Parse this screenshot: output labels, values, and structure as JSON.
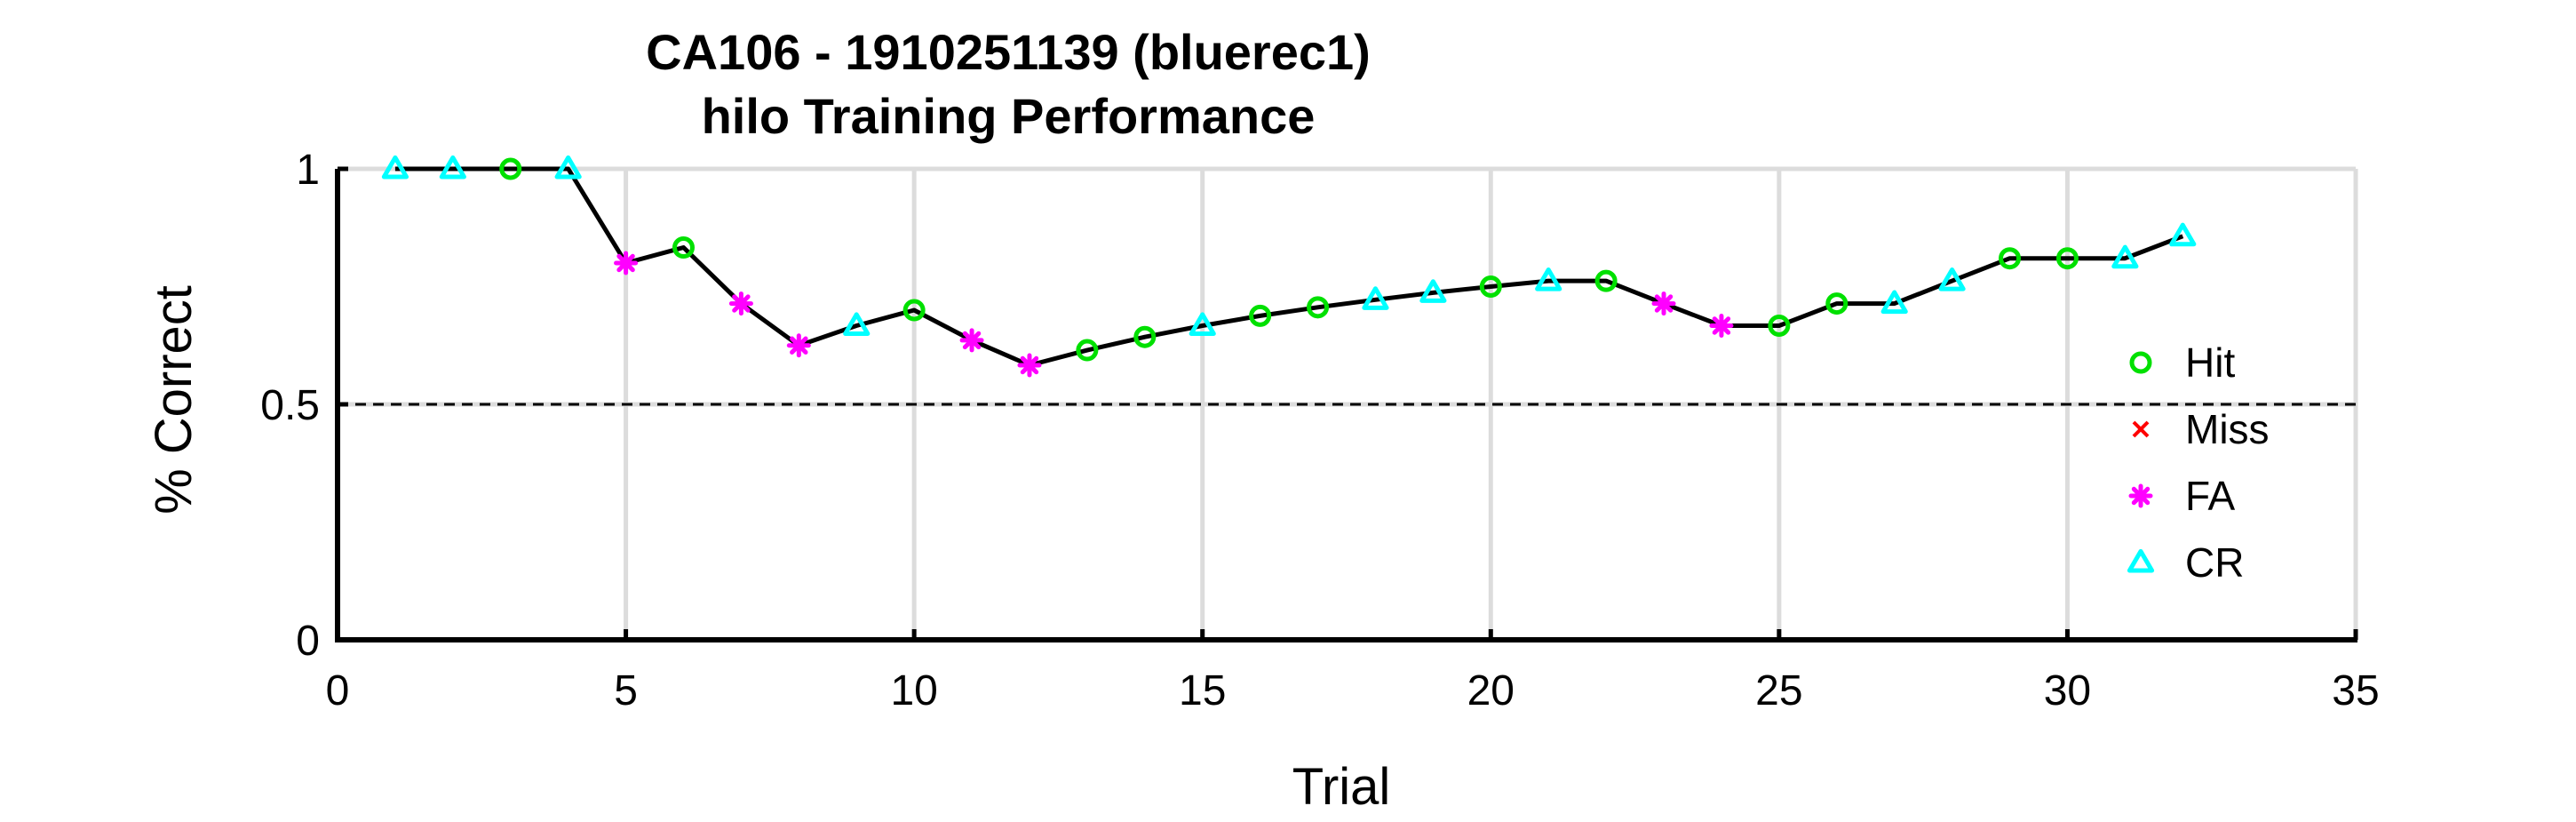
{
  "chart_data": {
    "type": "line",
    "title": "CA106 - 1910251139 (bluerec1)",
    "subtitle": "hilo Training Performance",
    "xlabel": "Trial",
    "ylabel": "% Correct",
    "xlim": [
      0,
      35
    ],
    "ylim": [
      0,
      1
    ],
    "xticks": [
      0,
      5,
      10,
      15,
      20,
      25,
      30,
      35
    ],
    "yticks": [
      0,
      0.5,
      1
    ],
    "xtick_labels": [
      "0",
      "5",
      "10",
      "15",
      "20",
      "25",
      "30",
      "35"
    ],
    "ytick_labels": [
      "0",
      "0.5",
      "1"
    ],
    "grid": true,
    "reference_line": 0.5,
    "legend_position": "right",
    "legend": [
      {
        "label": "Hit",
        "marker": "circle",
        "color": "#00e000"
      },
      {
        "label": "Miss",
        "marker": "x",
        "color": "#ff0000"
      },
      {
        "label": "FA",
        "marker": "asterisk",
        "color": "#ff00ff"
      },
      {
        "label": "CR",
        "marker": "triangle",
        "color": "#00ffff"
      }
    ],
    "line_color": "#000000",
    "points": [
      {
        "trial": 1,
        "value": 1.0,
        "outcome": "CR"
      },
      {
        "trial": 2,
        "value": 1.0,
        "outcome": "CR"
      },
      {
        "trial": 3,
        "value": 1.0,
        "outcome": "Hit"
      },
      {
        "trial": 4,
        "value": 1.0,
        "outcome": "CR"
      },
      {
        "trial": 5,
        "value": 0.8,
        "outcome": "FA"
      },
      {
        "trial": 6,
        "value": 0.833,
        "outcome": "Hit"
      },
      {
        "trial": 7,
        "value": 0.714,
        "outcome": "FA"
      },
      {
        "trial": 8,
        "value": 0.625,
        "outcome": "FA"
      },
      {
        "trial": 9,
        "value": 0.667,
        "outcome": "CR"
      },
      {
        "trial": 10,
        "value": 0.7,
        "outcome": "Hit"
      },
      {
        "trial": 11,
        "value": 0.636,
        "outcome": "FA"
      },
      {
        "trial": 12,
        "value": 0.583,
        "outcome": "FA"
      },
      {
        "trial": 13,
        "value": 0.615,
        "outcome": "Hit"
      },
      {
        "trial": 14,
        "value": 0.643,
        "outcome": "Hit"
      },
      {
        "trial": 15,
        "value": 0.667,
        "outcome": "CR"
      },
      {
        "trial": 16,
        "value": 0.688,
        "outcome": "Hit"
      },
      {
        "trial": 17,
        "value": 0.706,
        "outcome": "Hit"
      },
      {
        "trial": 18,
        "value": 0.722,
        "outcome": "CR"
      },
      {
        "trial": 19,
        "value": 0.737,
        "outcome": "CR"
      },
      {
        "trial": 20,
        "value": 0.75,
        "outcome": "Hit"
      },
      {
        "trial": 21,
        "value": 0.762,
        "outcome": "CR"
      },
      {
        "trial": 22,
        "value": 0.762,
        "outcome": "Hit"
      },
      {
        "trial": 23,
        "value": 0.714,
        "outcome": "FA"
      },
      {
        "trial": 24,
        "value": 0.667,
        "outcome": "FA"
      },
      {
        "trial": 25,
        "value": 0.667,
        "outcome": "Hit"
      },
      {
        "trial": 26,
        "value": 0.714,
        "outcome": "Hit"
      },
      {
        "trial": 27,
        "value": 0.714,
        "outcome": "CR"
      },
      {
        "trial": 28,
        "value": 0.762,
        "outcome": "CR"
      },
      {
        "trial": 29,
        "value": 0.81,
        "outcome": "Hit"
      },
      {
        "trial": 30,
        "value": 0.81,
        "outcome": "Hit"
      },
      {
        "trial": 31,
        "value": 0.81,
        "outcome": "CR"
      },
      {
        "trial": 32,
        "value": 0.857,
        "outcome": "CR"
      }
    ]
  }
}
